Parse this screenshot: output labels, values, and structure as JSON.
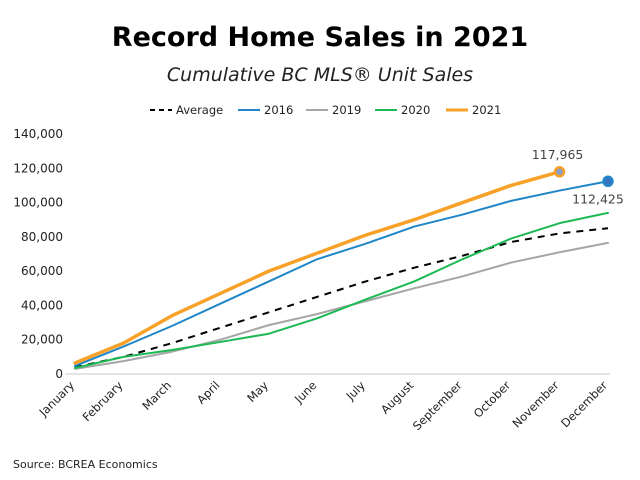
{
  "chart_data": {
    "type": "line",
    "title": "Record Home Sales in 2021",
    "subtitle": "Cumulative BC MLS® Unit Sales",
    "source": "Source: BCREA Economics",
    "categories": [
      "January",
      "February",
      "March",
      "April",
      "May",
      "June",
      "July",
      "August",
      "September",
      "October",
      "November",
      "December"
    ],
    "ylim": [
      0,
      140000
    ],
    "yticks": [
      "0",
      "20,000",
      "40,000",
      "60,000",
      "80,000",
      "100,000",
      "120,000",
      "140,000"
    ],
    "ytick_values": [
      0,
      20000,
      40000,
      60000,
      80000,
      100000,
      120000,
      140000
    ],
    "grid": false,
    "legend_position": "top",
    "series": [
      {
        "name": "Average",
        "color": "#000000",
        "dashed": true,
        "values": [
          4000,
          10000,
          18000,
          27000,
          36000,
          45000,
          54000,
          62000,
          69000,
          77000,
          82000,
          85000
        ]
      },
      {
        "name": "2016",
        "color": "#1f86c8",
        "values": [
          4700,
          16000,
          28000,
          41000,
          54000,
          67000,
          76000,
          86000,
          93000,
          101000,
          107000,
          112425
        ]
      },
      {
        "name": "2019",
        "color": "#a6a6a6",
        "values": [
          3000,
          7500,
          13000,
          20000,
          28500,
          35000,
          42500,
          50000,
          57000,
          65000,
          71000,
          76500
        ]
      },
      {
        "name": "2020",
        "color": "#1db954",
        "values": [
          3500,
          10000,
          14000,
          18700,
          23500,
          32500,
          43500,
          54000,
          67000,
          79000,
          88000,
          94000
        ]
      },
      {
        "name": "2021",
        "color": "#f7a128",
        "values": [
          6400,
          18000,
          34000,
          47000,
          60000,
          70500,
          81000,
          90000,
          100000,
          110000,
          117965,
          null
        ]
      }
    ],
    "annotations": [
      {
        "series": "2021",
        "category": "November",
        "label": "117,965"
      },
      {
        "series": "2016",
        "category": "December",
        "label": "112,425"
      }
    ]
  }
}
